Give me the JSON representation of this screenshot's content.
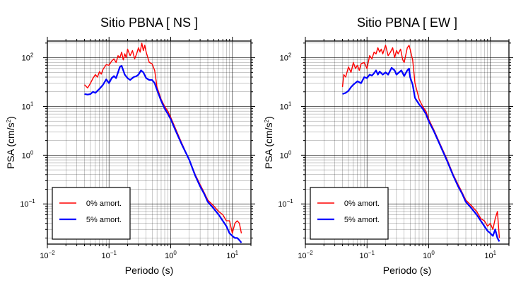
{
  "chart_data": [
    {
      "type": "line",
      "title": "Sitio PBNA [ NS ]",
      "xlabel": "Periodo (s)",
      "ylabel": "PSA (cm/s²)",
      "xscale": "log",
      "yscale": "log",
      "xlim": [
        0.01,
        20
      ],
      "ylim": [
        0.015,
        220
      ],
      "grid": true,
      "legend_position": "bottom-left",
      "x_ticks": [
        "10^-2",
        "10^-1",
        "10^0",
        "10^1"
      ],
      "y_ticks": [
        "10^-1",
        "10^0",
        "10^1",
        "10^2"
      ],
      "series": [
        {
          "name": "0% amort.",
          "color": "#ff0000",
          "x": [
            0.04,
            0.045,
            0.05,
            0.055,
            0.06,
            0.065,
            0.07,
            0.075,
            0.08,
            0.09,
            0.1,
            0.11,
            0.12,
            0.13,
            0.14,
            0.15,
            0.16,
            0.17,
            0.18,
            0.19,
            0.2,
            0.22,
            0.24,
            0.26,
            0.28,
            0.3,
            0.32,
            0.34,
            0.36,
            0.38,
            0.4,
            0.45,
            0.5,
            0.55,
            0.6,
            0.7,
            0.8,
            0.9,
            1.0,
            1.2,
            1.5,
            2.0,
            2.5,
            3.0,
            3.5,
            4.0,
            5.0,
            6.0,
            7.0,
            8.0,
            9.0,
            10.0,
            11.0,
            12.0,
            13.0,
            14.0
          ],
          "values": [
            28,
            24,
            30,
            38,
            45,
            40,
            52,
            46,
            58,
            72,
            70,
            85,
            95,
            80,
            110,
            100,
            130,
            90,
            120,
            100,
            150,
            110,
            140,
            95,
            120,
            160,
            130,
            200,
            140,
            180,
            130,
            80,
            75,
            55,
            25,
            14,
            10,
            8,
            6,
            3.5,
            1.8,
            0.8,
            0.4,
            0.25,
            0.17,
            0.12,
            0.09,
            0.07,
            0.06,
            0.045,
            0.045,
            0.025,
            0.04,
            0.045,
            0.04,
            0.025
          ]
        },
        {
          "name": "5% amort.",
          "color": "#0000ff",
          "x": [
            0.04,
            0.045,
            0.05,
            0.055,
            0.06,
            0.07,
            0.08,
            0.09,
            0.1,
            0.11,
            0.12,
            0.13,
            0.14,
            0.15,
            0.16,
            0.17,
            0.18,
            0.2,
            0.22,
            0.25,
            0.28,
            0.3,
            0.33,
            0.36,
            0.4,
            0.45,
            0.5,
            0.55,
            0.6,
            0.7,
            0.8,
            0.9,
            1.0,
            1.2,
            1.5,
            2.0,
            2.5,
            3.0,
            3.5,
            4.0,
            5.0,
            6.0,
            7.0,
            8.0,
            9.0,
            10.0,
            11.0,
            12.0,
            13.0,
            14.0
          ],
          "values": [
            18,
            17.5,
            18,
            20,
            19,
            23,
            28,
            36,
            30,
            38,
            42,
            38,
            50,
            65,
            68,
            55,
            45,
            38,
            35,
            40,
            42,
            45,
            55,
            50,
            38,
            35,
            35,
            30,
            22,
            13,
            9,
            7,
            5.5,
            3.2,
            1.7,
            0.8,
            0.38,
            0.23,
            0.16,
            0.11,
            0.08,
            0.06,
            0.045,
            0.035,
            0.025,
            0.022,
            0.02,
            0.02,
            0.018,
            0.016
          ]
        }
      ]
    },
    {
      "type": "line",
      "title": "Sitio PBNA [ EW ]",
      "xlabel": "Periodo (s)",
      "ylabel": "PSA (cm/s²)",
      "xscale": "log",
      "yscale": "log",
      "xlim": [
        0.01,
        20
      ],
      "ylim": [
        0.015,
        220
      ],
      "grid": true,
      "legend_position": "bottom-left",
      "x_ticks": [
        "10^-2",
        "10^-1",
        "10^0",
        "10^1"
      ],
      "y_ticks": [
        "10^-1",
        "10^0",
        "10^1",
        "10^2"
      ],
      "series": [
        {
          "name": "0% amort.",
          "color": "#ff0000",
          "x": [
            0.04,
            0.042,
            0.045,
            0.05,
            0.055,
            0.06,
            0.065,
            0.07,
            0.075,
            0.08,
            0.09,
            0.1,
            0.11,
            0.12,
            0.13,
            0.14,
            0.15,
            0.16,
            0.17,
            0.18,
            0.2,
            0.22,
            0.24,
            0.26,
            0.28,
            0.3,
            0.32,
            0.35,
            0.38,
            0.4,
            0.45,
            0.48,
            0.5,
            0.55,
            0.6,
            0.7,
            0.8,
            0.9,
            1.0,
            1.2,
            1.5,
            2.0,
            2.5,
            3.0,
            3.5,
            4.0,
            5.0,
            6.0,
            7.0,
            8.0,
            9.0,
            10.0,
            11.0,
            12.0,
            13.0,
            14.0
          ],
          "values": [
            25,
            45,
            40,
            65,
            50,
            80,
            60,
            70,
            55,
            75,
            80,
            60,
            110,
            95,
            130,
            120,
            160,
            130,
            150,
            120,
            180,
            110,
            130,
            160,
            100,
            140,
            120,
            150,
            90,
            80,
            160,
            180,
            150,
            90,
            30,
            14,
            10,
            8,
            5.5,
            3.4,
            1.8,
            0.8,
            0.4,
            0.25,
            0.17,
            0.12,
            0.09,
            0.07,
            0.05,
            0.045,
            0.035,
            0.04,
            0.03,
            0.05,
            0.07,
            0.02
          ]
        },
        {
          "name": "5% amort.",
          "color": "#0000ff",
          "x": [
            0.04,
            0.045,
            0.05,
            0.055,
            0.06,
            0.07,
            0.08,
            0.09,
            0.1,
            0.11,
            0.12,
            0.13,
            0.14,
            0.15,
            0.16,
            0.18,
            0.2,
            0.22,
            0.25,
            0.28,
            0.3,
            0.33,
            0.36,
            0.4,
            0.45,
            0.48,
            0.5,
            0.55,
            0.6,
            0.7,
            0.8,
            0.9,
            1.0,
            1.2,
            1.5,
            2.0,
            2.5,
            3.0,
            3.5,
            4.0,
            5.0,
            6.0,
            7.0,
            8.0,
            9.0,
            10.0,
            11.0,
            12.0,
            13.0,
            14.0
          ],
          "values": [
            18,
            19,
            21,
            25,
            28,
            33,
            30,
            40,
            38,
            45,
            43,
            48,
            55,
            45,
            52,
            45,
            50,
            45,
            62,
            55,
            45,
            50,
            55,
            42,
            55,
            60,
            40,
            28,
            15,
            11,
            9,
            7,
            5,
            3.2,
            1.7,
            0.75,
            0.38,
            0.23,
            0.16,
            0.11,
            0.08,
            0.06,
            0.045,
            0.035,
            0.028,
            0.025,
            0.022,
            0.03,
            0.02,
            0.017
          ]
        }
      ]
    }
  ]
}
